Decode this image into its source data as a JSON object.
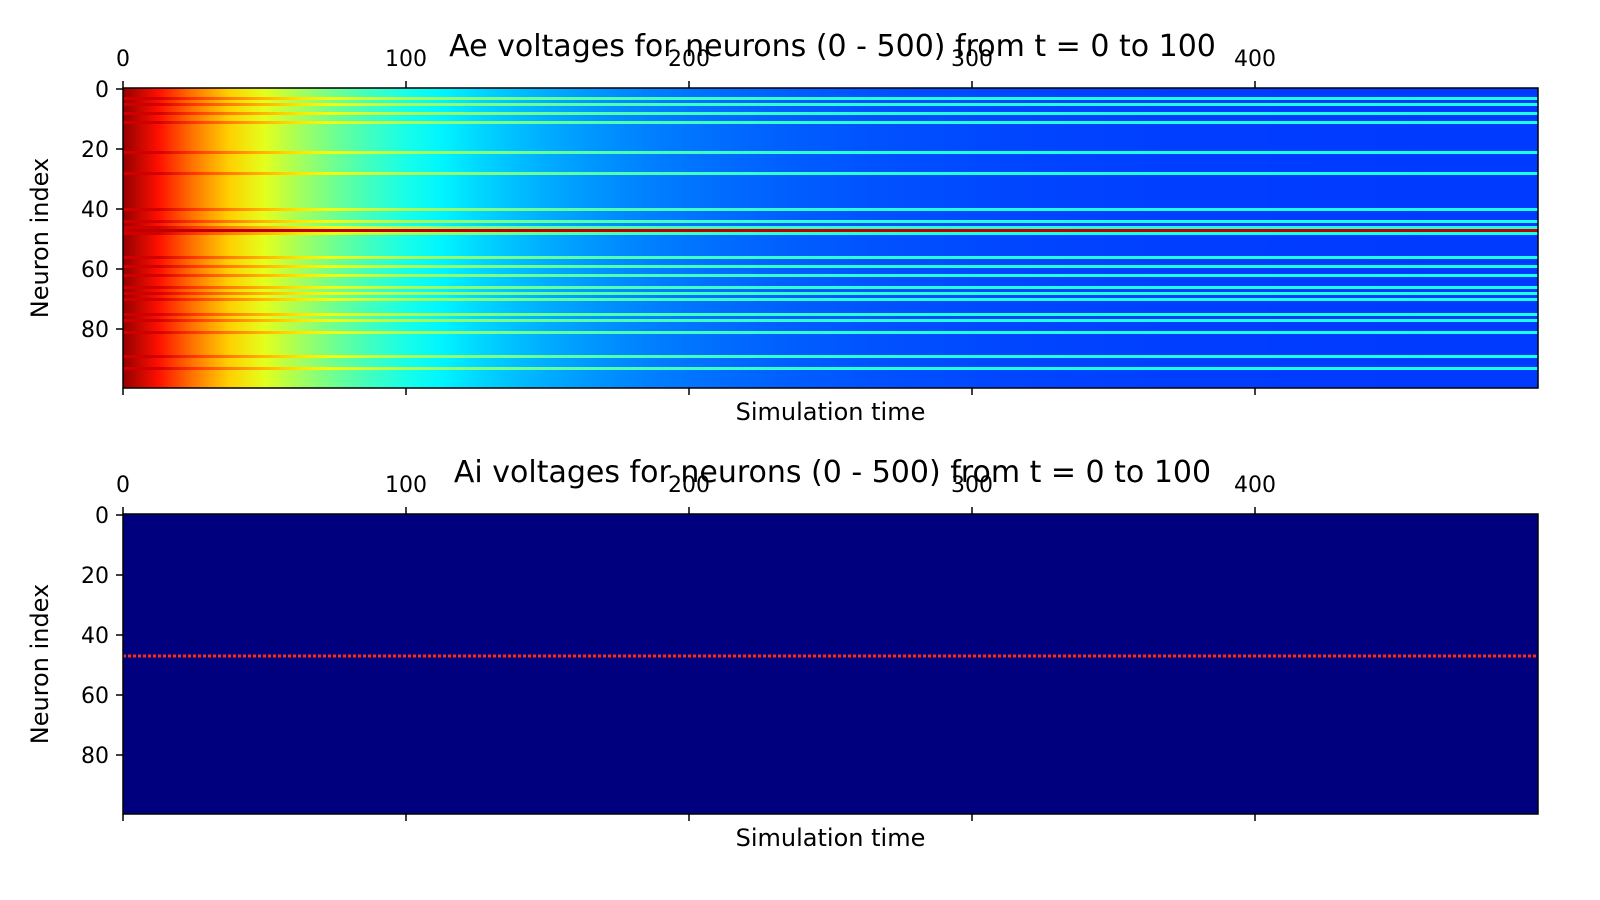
{
  "chart_data": [
    {
      "type": "heatmap",
      "title": "Ae voltages for neurons (0 - 500) from t = 0 to 100",
      "xlabel": "Simulation time",
      "ylabel": "Neuron index",
      "x_axis_position": "top",
      "xlim": [
        0,
        500
      ],
      "ylim": [
        100,
        0
      ],
      "x_ticks": [
        0,
        100,
        200,
        300,
        400
      ],
      "y_ticks": [
        0,
        20,
        40,
        60,
        80
      ],
      "colormap": "jet",
      "grid": false,
      "legend": "none",
      "description_of_values": {
        "base_pattern": "high (red) at t=0, decaying through yellow and cyan to blue by about t=200 and dark blue by t=500",
        "bright_rows": [
          3,
          5,
          8,
          11,
          21,
          28,
          40,
          44,
          46,
          48,
          56,
          59,
          62,
          66,
          68,
          70,
          75,
          77,
          81,
          89,
          93
        ],
        "highlight_row": {
          "neuron": 47,
          "color": "#c00000"
        }
      }
    },
    {
      "type": "heatmap",
      "title": "Ai voltages for neurons (0 - 500) from t = 0 to 100",
      "xlabel": "Simulation time",
      "ylabel": "Neuron index",
      "x_axis_position": "top",
      "xlim": [
        0,
        500
      ],
      "ylim": [
        100,
        0
      ],
      "x_ticks": [
        0,
        100,
        200,
        300,
        400
      ],
      "y_ticks": [
        0,
        20,
        40,
        60,
        80
      ],
      "colormap": "jet",
      "grid": false,
      "legend": "none",
      "description_of_values": {
        "base_pattern": "uniform minimum (dark navy) for all neurons and times",
        "highlight_row": {
          "neuron": 47,
          "color": "#ff2a10",
          "dotted": true
        }
      }
    }
  ],
  "colors": {
    "navy": "#00007f",
    "red": "#ff2a10"
  }
}
